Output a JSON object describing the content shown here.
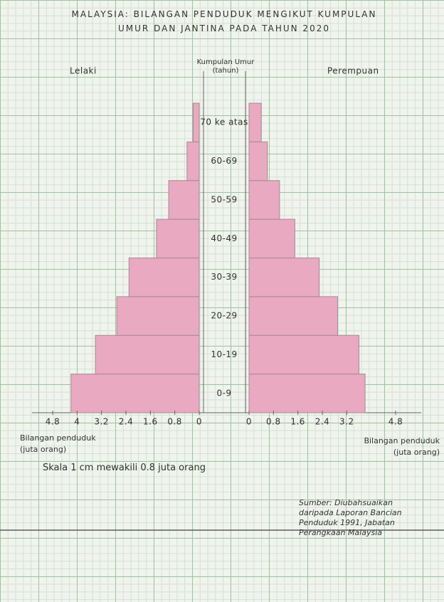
{
  "chart_data": {
    "type": "pyramid",
    "title": "MALAYSIA: BILANGAN PENDUDUK MENGIKUT KUMPULAN UMUR DAN JANTINA PADA TAHUN 2020",
    "ylabel": "Kumpulan Umur (tahun)",
    "xlabel": "Bilangan penduduk (juta orang)",
    "note": "Skala 1 cm mewakili 0.8 juta orang",
    "source": "Sumber: Diubahsuaikan daripada Laporan Bancian Penduduk 1991, Jabatan Perangkaan Malaysia",
    "categories": [
      "0-9",
      "10-19",
      "20-29",
      "30-39",
      "40-49",
      "50-59",
      "60-69",
      "70 ke atas"
    ],
    "xlim": [
      0,
      4.8
    ],
    "series": [
      {
        "name": "Lelaki",
        "color": "#e9a9c0",
        "values": [
          4.2,
          3.4,
          2.7,
          2.3,
          1.4,
          1.0,
          0.4,
          0.2
        ],
        "xticks": [
          4.8,
          4,
          3.2,
          2.4,
          1.6,
          0.8,
          0
        ]
      },
      {
        "name": "Perempuan",
        "color": "#e9a9c0",
        "values": [
          3.8,
          3.6,
          2.9,
          2.3,
          1.5,
          1.0,
          0.6,
          0.4
        ],
        "xticks": [
          0,
          0.8,
          1.6,
          2.4,
          3.2,
          4.8
        ]
      }
    ]
  }
}
